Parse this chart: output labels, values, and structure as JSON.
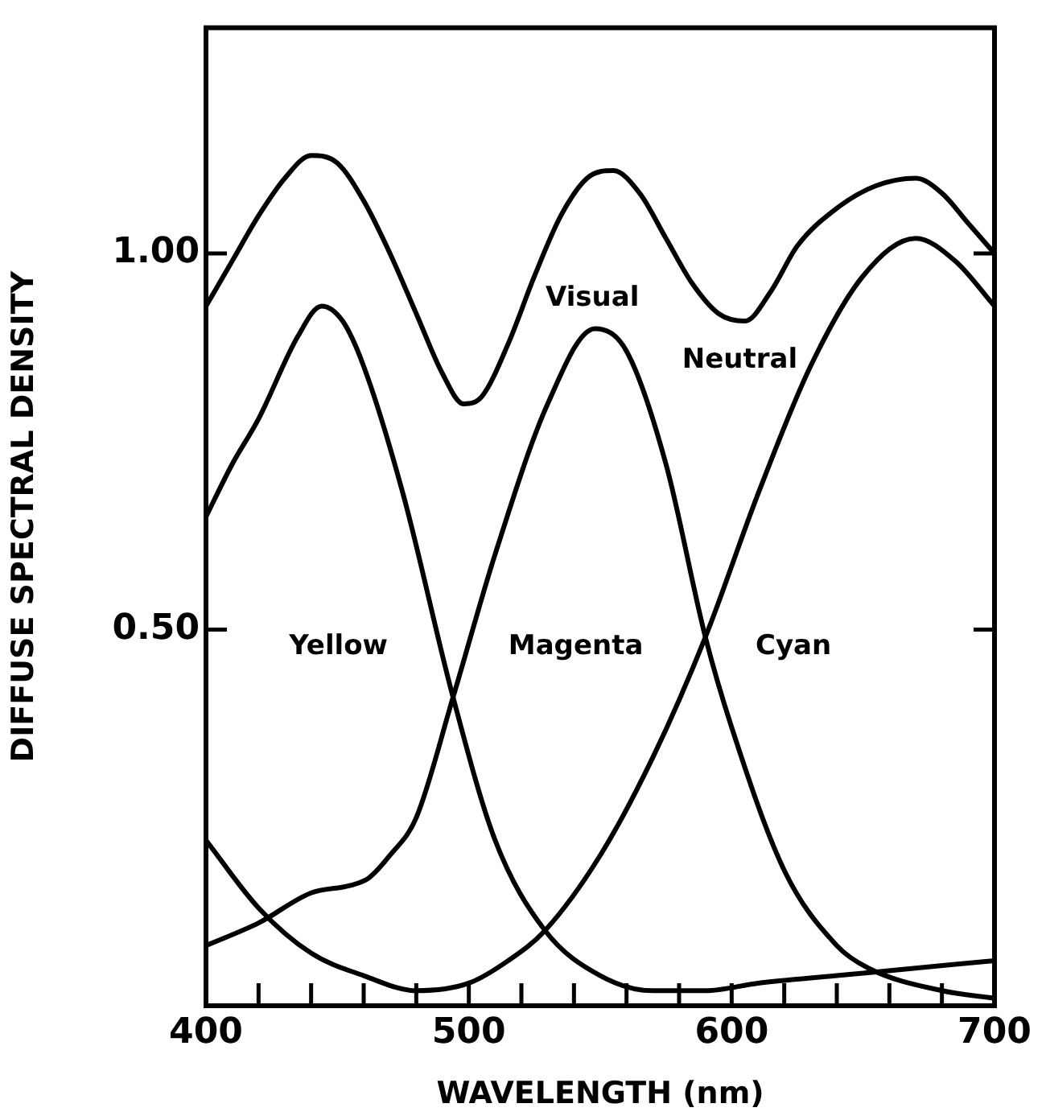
{
  "chart_data": {
    "type": "line",
    "xlabel": "WAVELENGTH (nm)",
    "ylabel": "DIFFUSE SPECTRAL DENSITY",
    "xlim": [
      400,
      700
    ],
    "ylim": [
      0,
      1.3
    ],
    "xticks": [
      400,
      {
        "value": 420,
        "label": null
      },
      {
        "value": 440,
        "label": null
      },
      {
        "value": 460,
        "label": null
      },
      {
        "value": 480,
        "label": null
      },
      500,
      {
        "value": 520,
        "label": null
      },
      {
        "value": 540,
        "label": null
      },
      {
        "value": 560,
        "label": null
      },
      {
        "value": 580,
        "label": null
      },
      600,
      {
        "value": 620,
        "label": null
      },
      {
        "value": 640,
        "label": null
      },
      {
        "value": 660,
        "label": null
      },
      {
        "value": 680,
        "label": null
      },
      700
    ],
    "yticks": [
      {
        "value": 0.5,
        "label": "0.50"
      },
      {
        "value": 1,
        "label": "1.00"
      }
    ],
    "grid": false,
    "legend": false,
    "marker": "none",
    "line_style": "solid",
    "series": [
      {
        "name": "Visual Neutral",
        "color": "#000000",
        "x": [
          400,
          410,
          420,
          430,
          440,
          450,
          460,
          470,
          480,
          490,
          498,
          505,
          515,
          525,
          535,
          545,
          555,
          565,
          575,
          585,
          595,
          605,
          615,
          625,
          640,
          655,
          670,
          680,
          690,
          700
        ],
        "values": [
          0.93,
          0.99,
          1.05,
          1.1,
          1.13,
          1.12,
          1.07,
          1.0,
          0.92,
          0.84,
          0.8,
          0.81,
          0.88,
          0.97,
          1.05,
          1.1,
          1.11,
          1.08,
          1.02,
          0.96,
          0.92,
          0.91,
          0.95,
          1.01,
          1.06,
          1.09,
          1.1,
          1.08,
          1.04,
          1.0
        ]
      },
      {
        "name": "Yellow",
        "color": "#000000",
        "x": [
          400,
          410,
          420,
          435,
          444,
          452,
          460,
          475,
          494,
          510,
          529,
          550,
          570,
          590,
          610,
          640,
          670,
          700
        ],
        "values": [
          0.65,
          0.72,
          0.78,
          0.89,
          0.93,
          0.91,
          0.85,
          0.68,
          0.41,
          0.22,
          0.1,
          0.04,
          0.02,
          0.02,
          0.03,
          0.04,
          0.05,
          0.06
        ]
      },
      {
        "name": "Magenta",
        "color": "#000000",
        "x": [
          400,
          420,
          440,
          455,
          462,
          470,
          480,
          494,
          510,
          530,
          548,
          560,
          575,
          590,
          600,
          620,
          640,
          652,
          680,
          700
        ],
        "values": [
          0.08,
          0.11,
          0.15,
          0.16,
          0.17,
          0.2,
          0.25,
          0.41,
          0.6,
          0.8,
          0.9,
          0.87,
          0.72,
          0.49,
          0.37,
          0.18,
          0.08,
          0.05,
          0.02,
          0.01
        ]
      },
      {
        "name": "Cyan",
        "color": "#000000",
        "x": [
          400,
          420,
          440,
          460,
          480,
          500,
          515,
          529,
          550,
          570,
          590,
          610,
          630,
          650,
          670,
          685,
          700
        ],
        "values": [
          0.22,
          0.13,
          0.07,
          0.04,
          0.02,
          0.03,
          0.06,
          0.1,
          0.2,
          0.33,
          0.49,
          0.68,
          0.85,
          0.97,
          1.02,
          0.99,
          0.93
        ]
      }
    ]
  }
}
